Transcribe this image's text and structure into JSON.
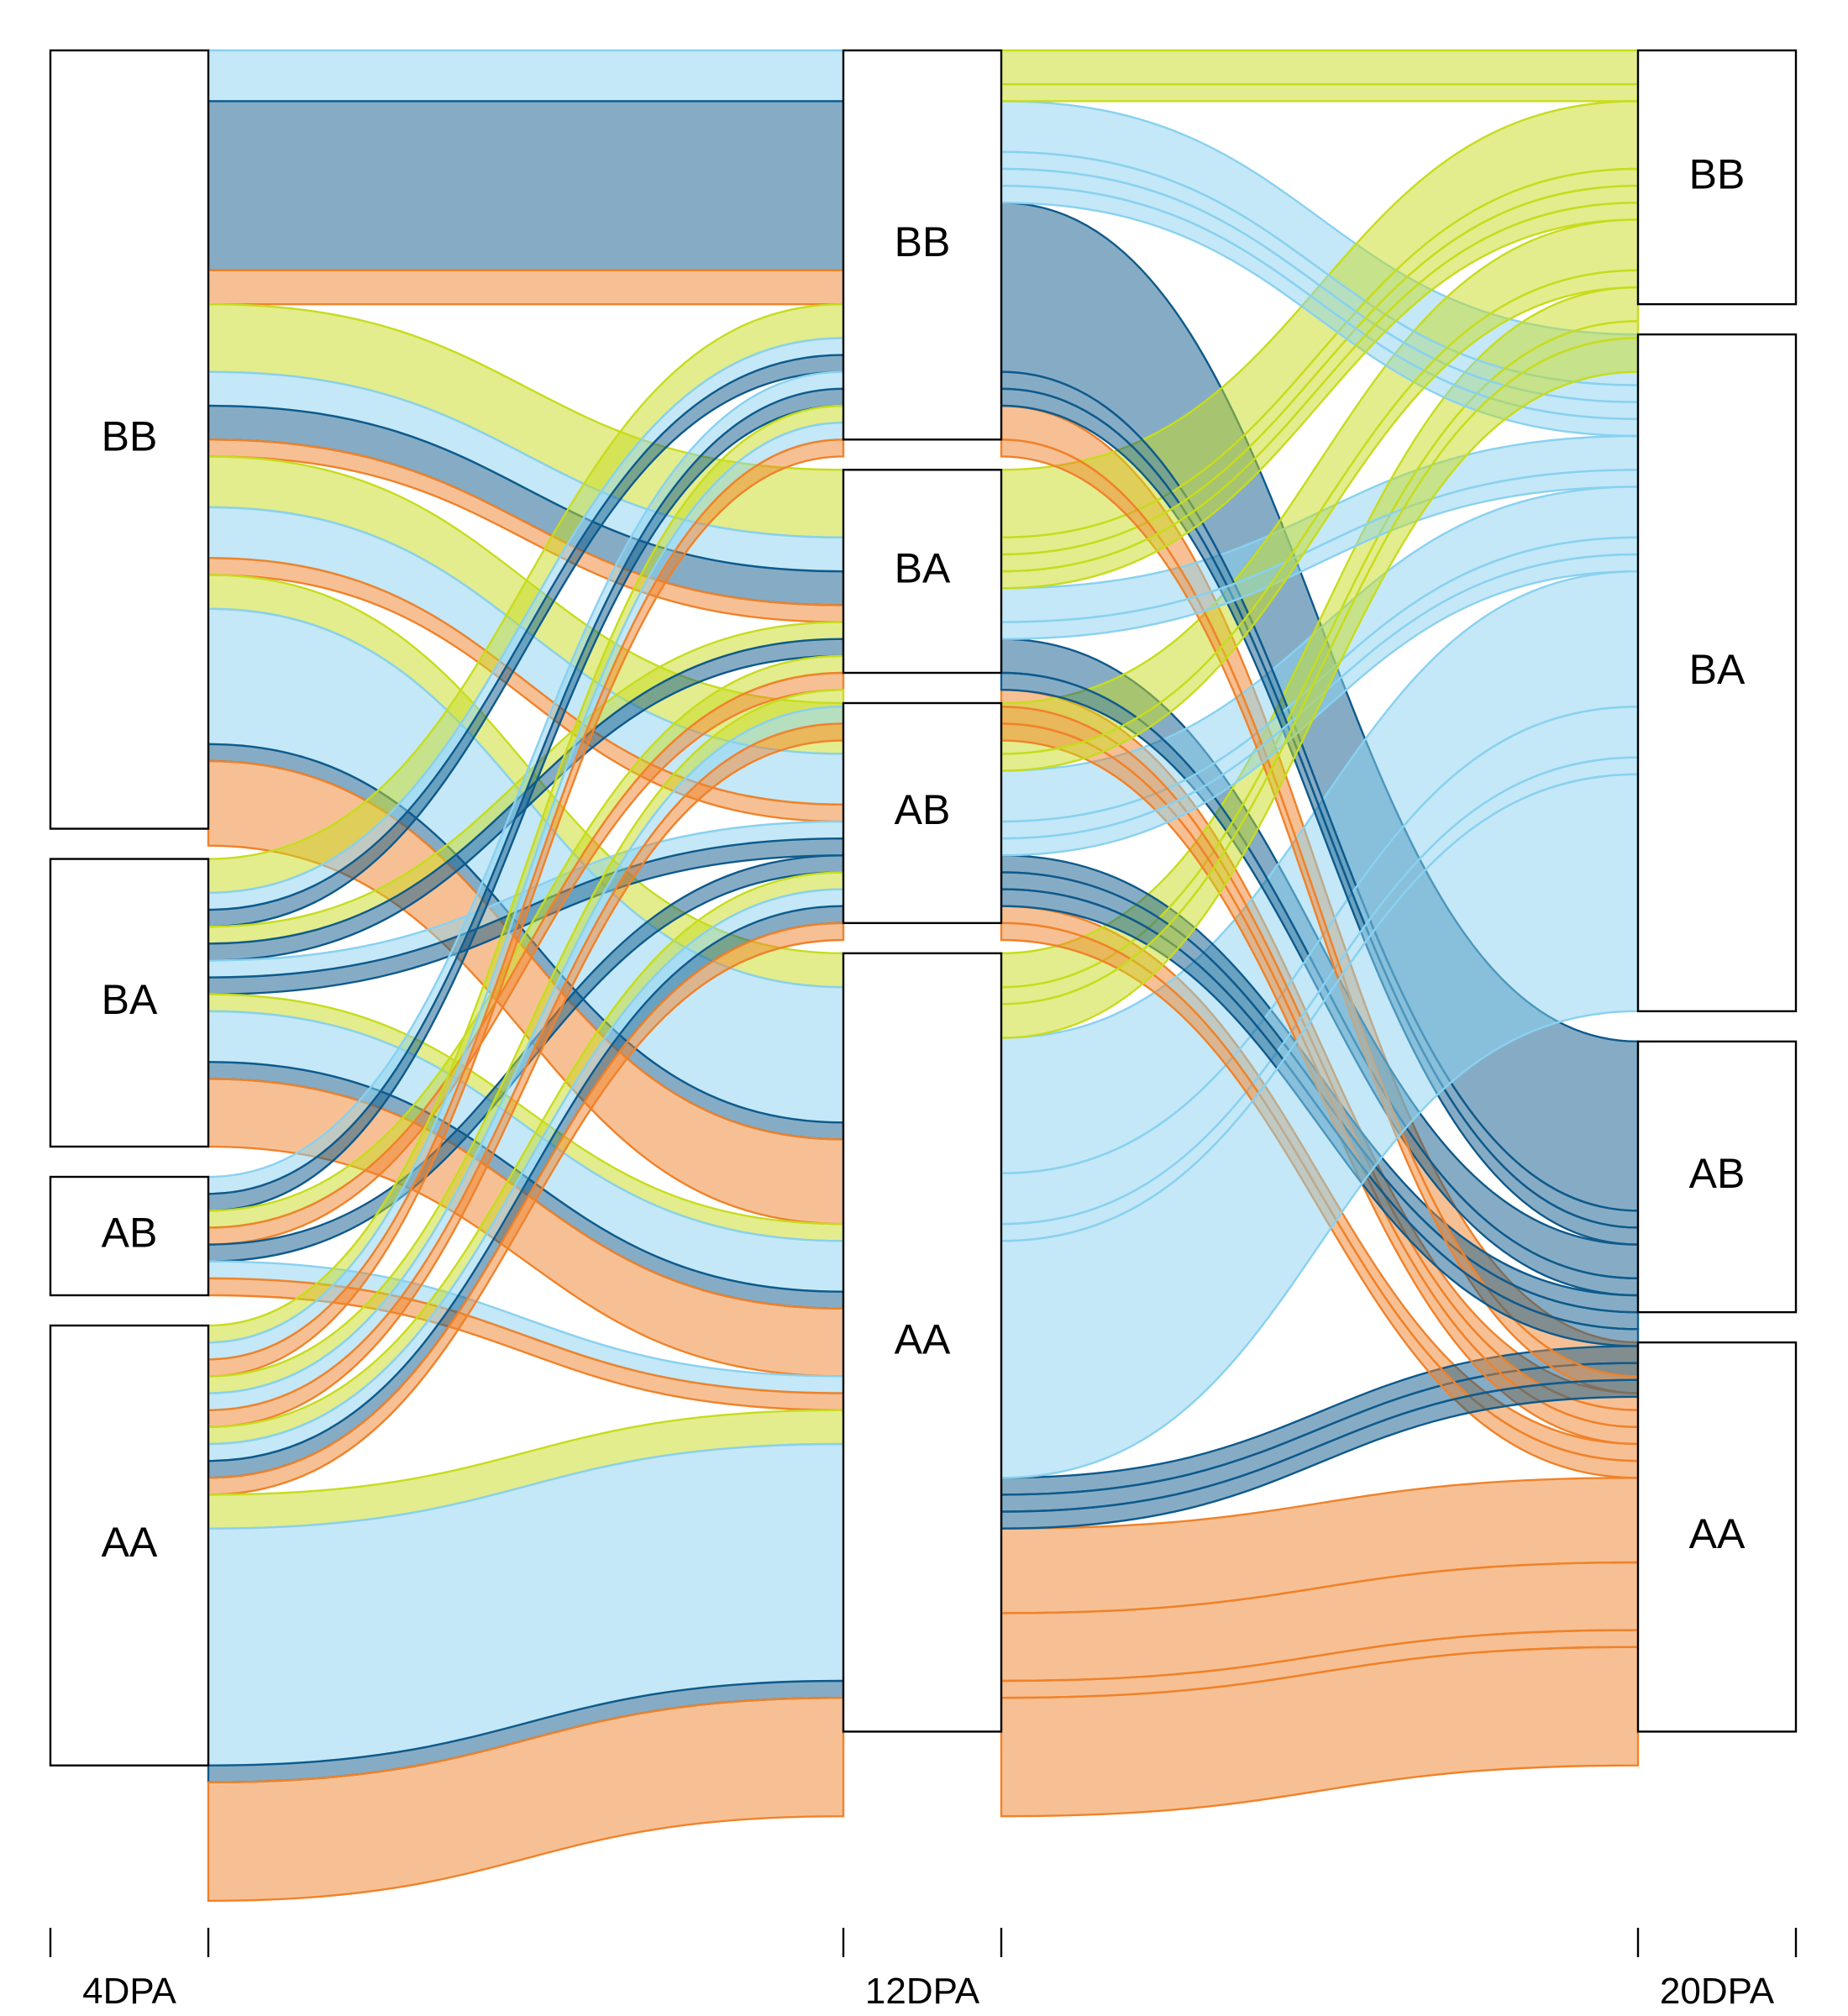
{
  "chart_data": {
    "type": "alluvial",
    "axes": [
      "4DPA",
      "12DPA",
      "20DPA"
    ],
    "categories": [
      "BB",
      "BA",
      "AB",
      "AA"
    ],
    "node_counts": {
      "4DPA": {
        "BB": 46,
        "BA": 17,
        "AB": 7,
        "AA": 26
      },
      "12DPA": {
        "BB": 23,
        "BA": 12,
        "AB": 13,
        "AA": 46
      },
      "20DPA": {
        "BB": 15,
        "BA": 40,
        "AB": 16,
        "AA": 23
      }
    },
    "color_scheme": {
      "BB": "#c7dc1e",
      "BA": "#89d1f0",
      "AB": "#0e5a8c",
      "AA": "#f0822a"
    },
    "flows": [
      {
        "path": [
          "BB",
          "BB",
          "BA"
        ],
        "value": 3
      },
      {
        "path": [
          "BB",
          "BB",
          "AB"
        ],
        "value": 10
      },
      {
        "path": [
          "BB",
          "BB",
          "AA"
        ],
        "value": 2
      },
      {
        "path": [
          "BB",
          "BA",
          "BB"
        ],
        "value": 4
      },
      {
        "path": [
          "BB",
          "BA",
          "BA"
        ],
        "value": 2
      },
      {
        "path": [
          "BB",
          "BA",
          "AB"
        ],
        "value": 2
      },
      {
        "path": [
          "BB",
          "BA",
          "AA"
        ],
        "value": 1
      },
      {
        "path": [
          "BB",
          "AB",
          "BB"
        ],
        "value": 3
      },
      {
        "path": [
          "BB",
          "AB",
          "BA"
        ],
        "value": 3
      },
      {
        "path": [
          "BB",
          "AB",
          "AA"
        ],
        "value": 1
      },
      {
        "path": [
          "BB",
          "AA",
          "BB"
        ],
        "value": 2
      },
      {
        "path": [
          "BB",
          "AA",
          "BA"
        ],
        "value": 8
      },
      {
        "path": [
          "BB",
          "AA",
          "AB"
        ],
        "value": 1
      },
      {
        "path": [
          "BB",
          "AA",
          "AA"
        ],
        "value": 5
      },
      {
        "path": [
          "BA",
          "BB",
          "BB"
        ],
        "value": 2
      },
      {
        "path": [
          "BA",
          "BB",
          "BA"
        ],
        "value": 1
      },
      {
        "path": [
          "BA",
          "BB",
          "AB"
        ],
        "value": 1
      },
      {
        "path": [
          "BA",
          "BA",
          "BB"
        ],
        "value": 1
      },
      {
        "path": [
          "BA",
          "BA",
          "AB"
        ],
        "value": 1
      },
      {
        "path": [
          "BA",
          "AB",
          "BA"
        ],
        "value": 1
      },
      {
        "path": [
          "BA",
          "AB",
          "AB"
        ],
        "value": 1
      },
      {
        "path": [
          "BA",
          "AA",
          "BB"
        ],
        "value": 1
      },
      {
        "path": [
          "BA",
          "AA",
          "BA"
        ],
        "value": 3
      },
      {
        "path": [
          "BA",
          "AA",
          "AB"
        ],
        "value": 1
      },
      {
        "path": [
          "BA",
          "AA",
          "AA"
        ],
        "value": 4
      },
      {
        "path": [
          "AB",
          "BB",
          "BA"
        ],
        "value": 1
      },
      {
        "path": [
          "AB",
          "BB",
          "AB"
        ],
        "value": 1
      },
      {
        "path": [
          "AB",
          "BA",
          "BB"
        ],
        "value": 1
      },
      {
        "path": [
          "AB",
          "BA",
          "AA"
        ],
        "value": 1
      },
      {
        "path": [
          "AB",
          "AB",
          "AB"
        ],
        "value": 1
      },
      {
        "path": [
          "AB",
          "AA",
          "BA"
        ],
        "value": 1
      },
      {
        "path": [
          "AB",
          "AA",
          "AA"
        ],
        "value": 1
      },
      {
        "path": [
          "AA",
          "BB",
          "BB"
        ],
        "value": 1
      },
      {
        "path": [
          "AA",
          "BB",
          "BA"
        ],
        "value": 1
      },
      {
        "path": [
          "AA",
          "BB",
          "AA"
        ],
        "value": 1
      },
      {
        "path": [
          "AA",
          "BA",
          "BB"
        ],
        "value": 1
      },
      {
        "path": [
          "AA",
          "BA",
          "BA"
        ],
        "value": 1
      },
      {
        "path": [
          "AA",
          "BA",
          "AA"
        ],
        "value": 1
      },
      {
        "path": [
          "AA",
          "AB",
          "BB"
        ],
        "value": 1
      },
      {
        "path": [
          "AA",
          "AB",
          "BA"
        ],
        "value": 1
      },
      {
        "path": [
          "AA",
          "AB",
          "AB"
        ],
        "value": 1
      },
      {
        "path": [
          "AA",
          "AB",
          "AA"
        ],
        "value": 1
      },
      {
        "path": [
          "AA",
          "AA",
          "BB"
        ],
        "value": 2
      },
      {
        "path": [
          "AA",
          "AA",
          "BA"
        ],
        "value": 14
      },
      {
        "path": [
          "AA",
          "AA",
          "AB"
        ],
        "value": 1
      },
      {
        "path": [
          "AA",
          "AA",
          "AA"
        ],
        "value": 7
      }
    ]
  }
}
